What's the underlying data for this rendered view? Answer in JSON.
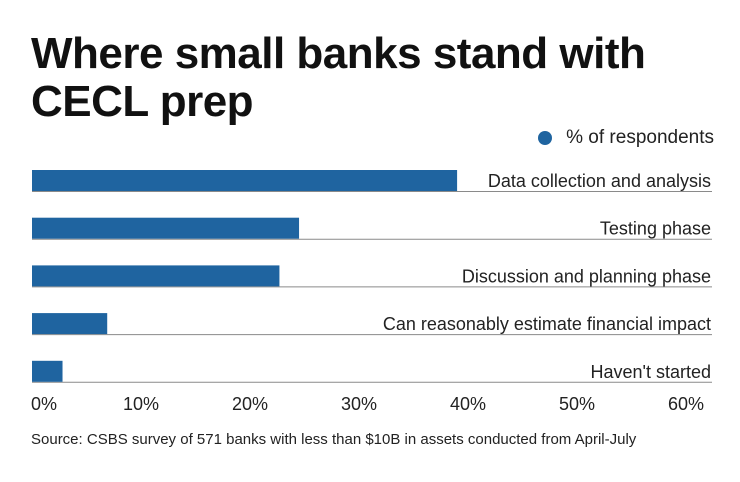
{
  "chart_data": {
    "type": "bar",
    "orientation": "horizontal",
    "title": "Where small banks stand with CECL prep",
    "legend": "% of respondents",
    "legend_position": "top-right",
    "categories": [
      "Data collection and analysis",
      "Testing phase",
      "Discussion and planning phase",
      "Can reasonably estimate financial impact",
      "Haven't started"
    ],
    "values": [
      39,
      24.5,
      22.7,
      6.9,
      2.8
    ],
    "xlim": [
      0,
      61
    ],
    "xticks": [
      "0%",
      "10%",
      "20%",
      "30%",
      "40%",
      "50%",
      "60%"
    ],
    "xtick_values": [
      0,
      10,
      20,
      30,
      40,
      50,
      60
    ],
    "source": "Source: CSBS survey of 571 banks with less than $10B in assets conducted from April-July"
  },
  "colors": {
    "bar": "#1f64a0",
    "baseline": "#8a8a8a"
  }
}
